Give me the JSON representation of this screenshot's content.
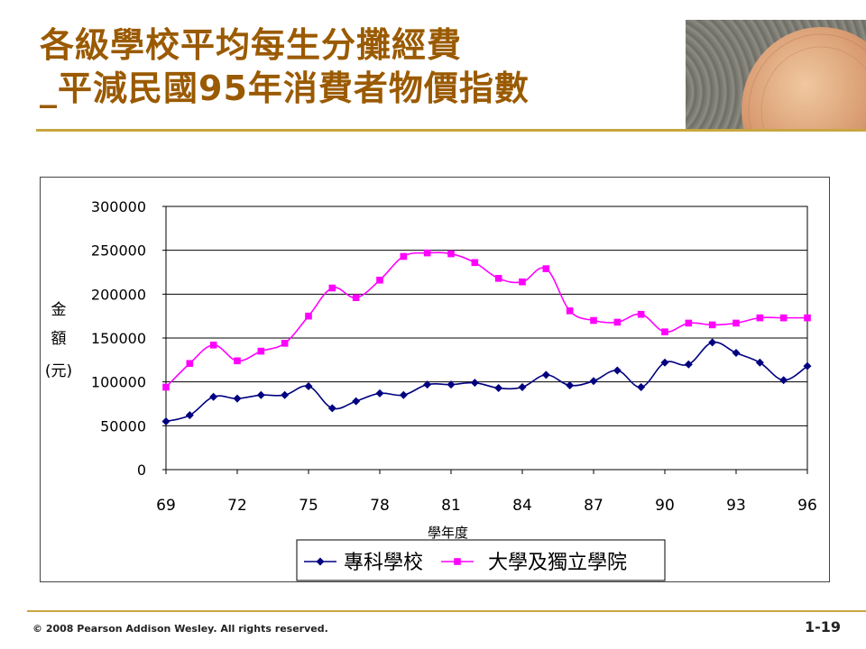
{
  "title": {
    "line1": "各級學校平均每生分攤經費",
    "line2_prefix": "_",
    "line2": "平減民國95年消費者物價指數"
  },
  "colors": {
    "title": "#9a5a00",
    "accent_rule": "#c8a640",
    "series1": "#000080",
    "series2": "#ff00ff"
  },
  "chart_data": {
    "type": "line",
    "xlabel": "學年度",
    "ylabel": "金額(元)",
    "ylabel_chars": [
      "金",
      "額",
      "(元)"
    ],
    "ylim": [
      0,
      300000
    ],
    "yticks": [
      0,
      50000,
      100000,
      150000,
      200000,
      250000,
      300000
    ],
    "xlim": [
      69,
      96
    ],
    "xticks": [
      69,
      72,
      75,
      78,
      81,
      84,
      87,
      90,
      93,
      96
    ],
    "grid": "horizontal",
    "legend_position": "bottom",
    "x": [
      69,
      70,
      71,
      72,
      73,
      74,
      75,
      76,
      77,
      78,
      79,
      80,
      81,
      82,
      83,
      84,
      85,
      86,
      87,
      88,
      89,
      90,
      91,
      92,
      93,
      94,
      95,
      96
    ],
    "series": [
      {
        "name": "專科學校",
        "marker": "diamond",
        "values": [
          55000,
          62000,
          83000,
          81000,
          85000,
          85000,
          95000,
          70000,
          78000,
          87000,
          85000,
          97000,
          97000,
          99000,
          93000,
          94000,
          108000,
          96000,
          101000,
          113000,
          94000,
          122000,
          120000,
          145000,
          133000,
          122000,
          102000,
          118000
        ]
      },
      {
        "name": "大學及獨立學院",
        "marker": "square",
        "values": [
          94000,
          121000,
          142000,
          124000,
          135000,
          144000,
          175000,
          207000,
          196000,
          216000,
          243000,
          247000,
          246000,
          236000,
          218000,
          214000,
          229000,
          181000,
          170000,
          168000,
          177000,
          157000,
          167000,
          165000,
          167000,
          173000,
          173000,
          173000
        ]
      }
    ]
  },
  "footer": {
    "copyright": "© 2008 Pearson Addison Wesley. All rights reserved.",
    "page": "1-19"
  }
}
